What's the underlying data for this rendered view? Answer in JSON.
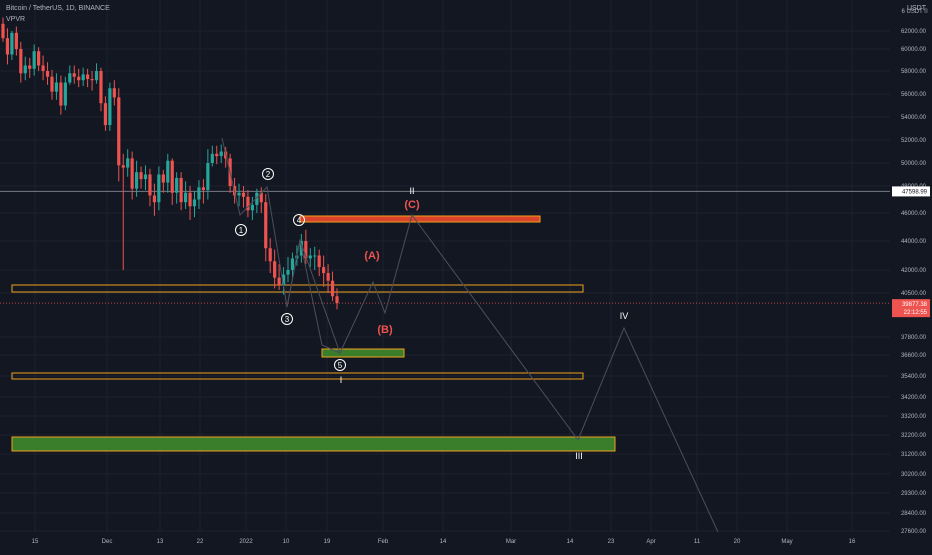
{
  "header": {
    "symbol_title": "Bitcoin / TetherUS, 1D, BINANCE",
    "indicator": "VPVR",
    "currency": "USDT"
  },
  "colors": {
    "background": "#131722",
    "grid": "#1e222d",
    "axis_text": "#b2b5be",
    "candle_up": "#26a69a",
    "candle_down": "#ef5350",
    "wave_line": "#4a4f5b",
    "wave_label_white": "#ffffff",
    "wave_label_red": "#ef5350",
    "box_orange": "#f0a21a",
    "box_green": "#3a7d2a",
    "box_red_fill": "#d9432c"
  },
  "chart_data": {
    "type": "candlestick",
    "title": "Bitcoin / TetherUS, 1D, BINANCE",
    "y_axis": {
      "ylim": [
        27000,
        64500
      ],
      "tick_labels": [
        "62000.00",
        "60000.00",
        "58000.00",
        "56000.00",
        "54000.00",
        "52000.00",
        "50000.00",
        "48000.00",
        "46000.00",
        "44000.00",
        "42000.00",
        "40500.00",
        "37800.00",
        "36600.00",
        "35400.00",
        "34200.00",
        "33200.00",
        "32200.00",
        "31200.00",
        "30200.00",
        "29300.00",
        "28400.00",
        "27600.00"
      ],
      "tick_values": [
        62000,
        60000,
        58000,
        56000,
        54000,
        52000,
        50000,
        48000,
        46000,
        44000,
        42000,
        40500,
        37800,
        36600,
        35400,
        34200,
        33200,
        32200,
        31200,
        30200,
        29300,
        28400,
        27600
      ],
      "top_label": "6 USDT"
    },
    "x_axis": {
      "tick_labels": [
        "15",
        "Dec",
        "13",
        "22",
        "2022",
        "10",
        "19",
        "Feb",
        "14",
        "Mar",
        "14",
        "23",
        "Apr",
        "11",
        "20",
        "May",
        "16"
      ],
      "tick_x": [
        35,
        107,
        160,
        200,
        246,
        286,
        327,
        383,
        443,
        511,
        570,
        611,
        651,
        697,
        737,
        787,
        852
      ]
    },
    "price_labels": {
      "line_price": "47598.99",
      "last_price": "39877.38",
      "countdown": "22:12:55"
    },
    "candles": {
      "open": [
        62800,
        61200,
        59500,
        61800,
        60000,
        57800,
        58500,
        58200,
        59800,
        58500,
        58000,
        57500,
        56200,
        57000,
        55000,
        57000,
        57800,
        57500,
        57200,
        57700,
        57300,
        57200,
        58000,
        55200,
        53300,
        56500,
        55700,
        49800,
        49600,
        50400,
        47800,
        49200,
        48600,
        49000,
        47300,
        46800,
        49000,
        48300,
        50200,
        47500,
        48700,
        46800,
        47500,
        46500,
        47000,
        47900,
        47700,
        50000,
        50800,
        50600,
        51000,
        50400,
        48000,
        47300,
        47500,
        47200,
        46200,
        46600,
        47500,
        46800,
        43500,
        42600,
        41500,
        41000,
        41700,
        42000,
        42800,
        43000,
        44000,
        42800,
        43000,
        43000,
        42200,
        41800,
        41300,
        40300
      ],
      "close": [
        61200,
        59500,
        61800,
        60000,
        57800,
        58500,
        58200,
        59800,
        58500,
        58000,
        57500,
        56200,
        57000,
        55000,
        57000,
        57800,
        57500,
        57200,
        57700,
        57300,
        57200,
        58000,
        55200,
        53300,
        56500,
        55700,
        49800,
        49600,
        50400,
        47800,
        49200,
        48600,
        49000,
        47300,
        46800,
        49000,
        48300,
        50200,
        47500,
        48700,
        46800,
        47500,
        46500,
        47000,
        47900,
        47700,
        50000,
        50800,
        50600,
        51000,
        50400,
        48000,
        47300,
        47500,
        47200,
        46200,
        46600,
        47500,
        46800,
        43500,
        42600,
        41500,
        41000,
        41700,
        42000,
        42800,
        43000,
        44000,
        42800,
        43000,
        43000,
        42200,
        41800,
        41300,
        40300,
        39877
      ],
      "high": [
        63500,
        62300,
        62000,
        62500,
        60800,
        59300,
        59200,
        60500,
        60200,
        59400,
        58800,
        58100,
        57800,
        57600,
        57500,
        58500,
        58500,
        58200,
        58300,
        58200,
        58000,
        58700,
        58300,
        55800,
        57000,
        57200,
        56500,
        50800,
        51200,
        51000,
        50200,
        49700,
        49800,
        49500,
        48200,
        49700,
        49400,
        50800,
        50400,
        49200,
        49200,
        48400,
        48000,
        47600,
        48500,
        48600,
        51200,
        51500,
        51500,
        51600,
        51400,
        50800,
        48700,
        48200,
        48000,
        47700,
        47200,
        47800,
        47900,
        47400,
        44200,
        43400,
        42400,
        42200,
        42900,
        43200,
        43700,
        44500,
        44800,
        43500,
        43600,
        43400,
        43000,
        42400,
        41900,
        40800
      ],
      "low": [
        60800,
        58600,
        59000,
        59400,
        57000,
        57200,
        57400,
        57600,
        58000,
        57200,
        56800,
        55500,
        55500,
        54200,
        54600,
        56800,
        56900,
        56600,
        56700,
        56600,
        56300,
        56900,
        54500,
        52800,
        52800,
        55000,
        48400,
        42000,
        48800,
        47000,
        47200,
        47800,
        47700,
        46500,
        45800,
        46200,
        47500,
        47500,
        46600,
        46700,
        46200,
        46300,
        45500,
        45700,
        46300,
        46700,
        47000,
        49700,
        49900,
        50000,
        49600,
        47500,
        46700,
        46500,
        46400,
        45700,
        45500,
        46000,
        46000,
        42600,
        41800,
        40800,
        40700,
        40400,
        41200,
        41400,
        42300,
        42500,
        42400,
        42200,
        42000,
        41600,
        40900,
        40500,
        40000,
        39500
      ]
    },
    "wave_labels": [
      {
        "text": "1",
        "style": "circled",
        "color": "white"
      },
      {
        "text": "2",
        "style": "circled",
        "color": "white"
      },
      {
        "text": "3",
        "style": "circled",
        "color": "white"
      },
      {
        "text": "4",
        "style": "circled",
        "color": "white"
      },
      {
        "text": "5",
        "style": "circled",
        "color": "white"
      },
      {
        "text": "I",
        "style": "plain",
        "color": "white"
      },
      {
        "text": "(A)",
        "style": "plain",
        "color": "red"
      },
      {
        "text": "(B)",
        "style": "plain",
        "color": "red"
      },
      {
        "text": "(C)",
        "style": "plain",
        "color": "red"
      },
      {
        "text": "II",
        "style": "plain",
        "color": "white"
      },
      {
        "text": "III",
        "style": "plain",
        "color": "white"
      },
      {
        "text": "IV",
        "style": "plain",
        "color": "white"
      }
    ],
    "zones": [
      {
        "name": "orange-zone-upper",
        "price_low": 40600,
        "price_high": 41000,
        "color": "orange",
        "fill": false
      },
      {
        "name": "red-zone",
        "price_low": 45900,
        "price_high": 46300,
        "color": "orange",
        "fill": "red"
      },
      {
        "name": "green-zone-small",
        "price_low": 36500,
        "price_high": 37000,
        "color": "orange",
        "fill": "green"
      },
      {
        "name": "orange-zone-mid",
        "price_low": 35300,
        "price_high": 35700,
        "color": "orange",
        "fill": false
      },
      {
        "name": "green-zone-large",
        "price_low": 31300,
        "price_high": 32200,
        "color": "orange",
        "fill": "green"
      }
    ]
  }
}
